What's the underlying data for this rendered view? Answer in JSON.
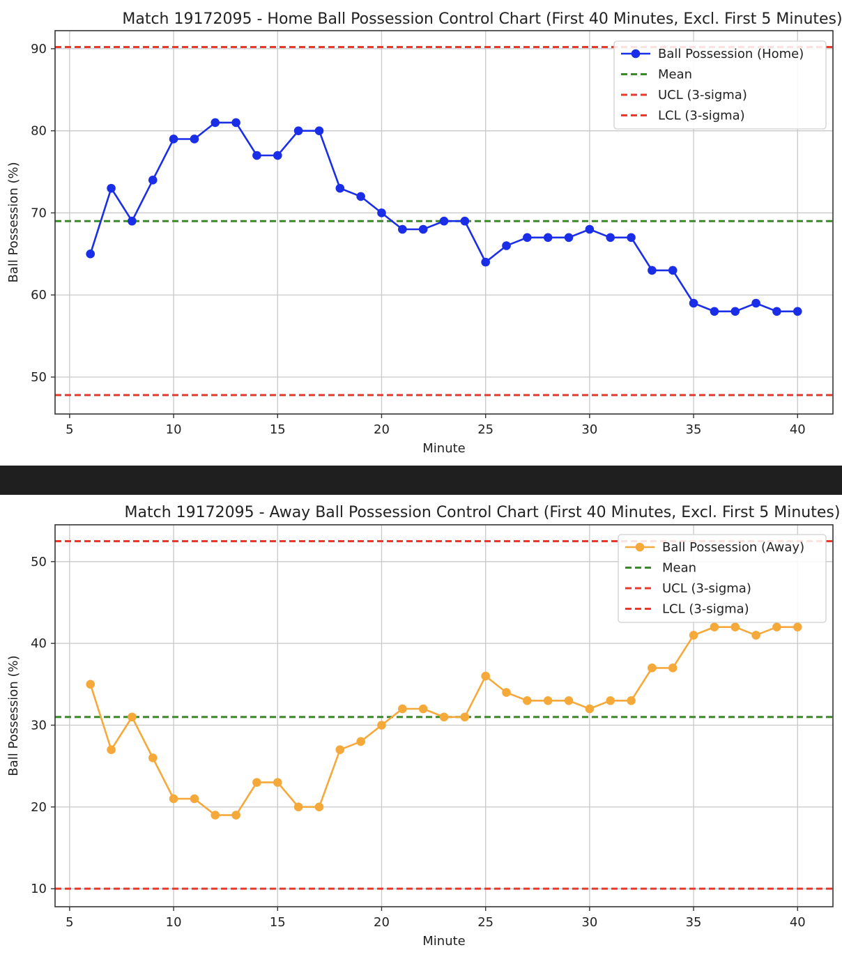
{
  "colors": {
    "background": "#ffffff",
    "separator": "#1f1f1f",
    "grid": "#c8c8c8",
    "axis": "#333333",
    "mean": "#3a8a2a",
    "control_limit": "#e8392b"
  },
  "chart_data": [
    {
      "type": "line",
      "title": "Match 19172095 - Home Ball Possession Control Chart (First 40 Minutes, Excl. First 5 Minutes)",
      "xlabel": "Minute",
      "ylabel": "Ball Possession (%)",
      "xlim": [
        4.3,
        41.7
      ],
      "ylim": [
        45.5,
        92.2
      ],
      "xticks": [
        5,
        10,
        15,
        20,
        25,
        30,
        35,
        40
      ],
      "yticks": [
        50,
        60,
        70,
        80,
        90
      ],
      "grid": true,
      "legend_position": "top-right",
      "x": [
        6,
        7,
        8,
        9,
        10,
        11,
        12,
        13,
        14,
        15,
        16,
        17,
        18,
        19,
        20,
        21,
        22,
        23,
        24,
        25,
        26,
        27,
        28,
        29,
        30,
        31,
        32,
        33,
        34,
        35,
        36,
        37,
        38,
        39,
        40
      ],
      "series": [
        {
          "name": "Ball Possession (Home)",
          "color": "#1a2ee8",
          "values": [
            65,
            73,
            69,
            74,
            79,
            79,
            81,
            81,
            77,
            77,
            80,
            80,
            73,
            72,
            70,
            68,
            68,
            69,
            69,
            64,
            66,
            67,
            67,
            67,
            68,
            67,
            67,
            63,
            63,
            59,
            58,
            58,
            59,
            58,
            58
          ]
        }
      ],
      "reference_lines": [
        {
          "name": "Mean",
          "value": 69.0,
          "color": "#3a8a2a"
        },
        {
          "name": "UCL (3-sigma)",
          "value": 90.2,
          "color": "#e8392b"
        },
        {
          "name": "LCL (3-sigma)",
          "value": 47.8,
          "color": "#e8392b"
        }
      ]
    },
    {
      "type": "line",
      "title": "Match 19172095 - Away Ball Possession Control Chart (First 40 Minutes, Excl. First 5 Minutes)",
      "xlabel": "Minute",
      "ylabel": "Ball Possession (%)",
      "xlim": [
        4.3,
        41.7
      ],
      "ylim": [
        7.8,
        54.5
      ],
      "xticks": [
        5,
        10,
        15,
        20,
        25,
        30,
        35,
        40
      ],
      "yticks": [
        10,
        20,
        30,
        40,
        50
      ],
      "grid": true,
      "legend_position": "top-right",
      "x": [
        6,
        7,
        8,
        9,
        10,
        11,
        12,
        13,
        14,
        15,
        16,
        17,
        18,
        19,
        20,
        21,
        22,
        23,
        24,
        25,
        26,
        27,
        28,
        29,
        30,
        31,
        32,
        33,
        34,
        35,
        36,
        37,
        38,
        39,
        40
      ],
      "series": [
        {
          "name": "Ball Possession (Away)",
          "color": "#f5a93a",
          "values": [
            35,
            27,
            31,
            26,
            21,
            21,
            19,
            19,
            23,
            23,
            20,
            20,
            27,
            28,
            30,
            32,
            32,
            31,
            31,
            36,
            34,
            33,
            33,
            33,
            32,
            33,
            33,
            37,
            37,
            41,
            42,
            42,
            41,
            42,
            42
          ]
        }
      ],
      "reference_lines": [
        {
          "name": "Mean",
          "value": 31.0,
          "color": "#3a8a2a"
        },
        {
          "name": "UCL (3-sigma)",
          "value": 52.5,
          "color": "#e8392b"
        },
        {
          "name": "LCL (3-sigma)",
          "value": 10.0,
          "color": "#e8392b"
        }
      ]
    }
  ]
}
